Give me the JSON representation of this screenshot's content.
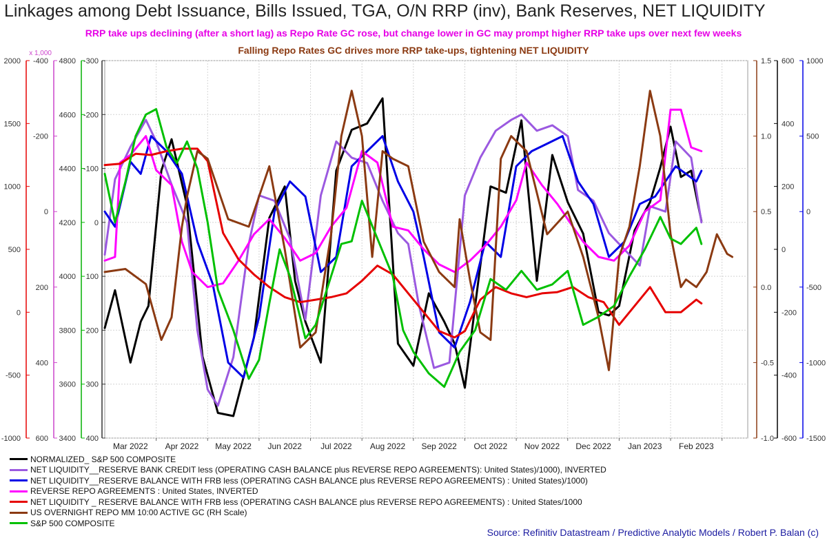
{
  "title": "Linkages among Debt Issuance, Bills Issued, TGA, O/N RRP (inv), Bank Reserves, NET LIQUIDITY",
  "subtitle_1": "RRP take ups declining (after a short lag) as Repo Rate GC rose, but change lower in GC may prompt higher RRP take ups over next few weeks",
  "subtitle_2": "Falling Repo Rates GC drives more RRP take-ups, tightening NET LIQUIDITY",
  "source": "Source: Refinitiv Datastream / Predictive Analytic Models / Robert P. Balan (c)",
  "legend": [
    {
      "label": "NORMALIZED_ S&P 500 COMPOSITE",
      "color": "#000000"
    },
    {
      "label": "NET LIQUIDITY__RESERVE BANK CREDIT less (OPERATING CASH BALANCE plus REVERSE REPO AGREEMENTS): United States)/1000), INVERTED",
      "color": "#9b59e0"
    },
    {
      "label": "NET LIQUIDITY__RESERVE BALANCE WITH FRB less (OPERATING CASH BALANCE plus REVERSE REPO AGREEMENTS) : United States)/1000)",
      "color": "#0000e6"
    },
    {
      "label": "REVERSE REPO AGREEMENTS : United States, INVERTED",
      "color": "#ff00ff"
    },
    {
      "label": "NET LIQUIDITY _ RESERVE BALANCE WITH FRB less (OPERATING CASH BALANCE plus REVERSE REPO AGREEMENTS) : United States/1000",
      "color": "#e60000"
    },
    {
      "label": "US OVERNIGHT REPO MM 10:00 ACTIVE GC (RH Scale)",
      "color": "#8b3a12"
    },
    {
      "label": "S&P 500 COMPOSITE",
      "color": "#00c000"
    }
  ],
  "chart_data": {
    "type": "line",
    "x_ticks": [
      "Mar 2022",
      "Apr 2022",
      "May 2022",
      "Jun 2022",
      "Jul 2022",
      "Aug 2022",
      "Sep 2022",
      "Oct 2022",
      "Nov 2022",
      "Dec 2022",
      "Jan 2023",
      "Feb 2023"
    ],
    "x_range_months": [
      0,
      12.5
    ],
    "axes": [
      {
        "id": "red",
        "side": "left",
        "color": "#e60000",
        "range": [
          -1000,
          2000
        ],
        "ticks": [
          "2000",
          "1500",
          "1000",
          "500",
          "0",
          "-500",
          "-1000"
        ],
        "values": [
          2000,
          1500,
          1000,
          500,
          0,
          -500,
          -1000
        ]
      },
      {
        "id": "magenta",
        "side": "left",
        "color": "#cc44cc",
        "range": [
          -400,
          600
        ],
        "inverted": true,
        "unit_label": "x 1,000",
        "ticks": [
          "-400",
          "-200",
          "0",
          "200",
          "400",
          "600"
        ],
        "values": [
          -400,
          -200,
          0,
          200,
          400,
          600
        ]
      },
      {
        "id": "green",
        "side": "left",
        "color": "#00b000",
        "range": [
          3400,
          4800
        ],
        "ticks": [
          "4800",
          "4600",
          "4400",
          "4200",
          "4000",
          "3800",
          "3600",
          "3400"
        ],
        "values": [
          4800,
          4600,
          4400,
          4200,
          4000,
          3800,
          3600,
          3400
        ]
      },
      {
        "id": "purple",
        "side": "left",
        "color": "#333333",
        "range": [
          -300,
          400
        ],
        "inverted": true,
        "ticks": [
          "-300",
          "-200",
          "-100",
          "0",
          "100",
          "200",
          "300",
          "400"
        ],
        "values": [
          -300,
          -200,
          -100,
          0,
          100,
          200,
          300,
          400
        ]
      },
      {
        "id": "brown",
        "side": "right",
        "color": "#8b3a12",
        "range": [
          -1.0,
          1.5
        ],
        "ticks": [
          "1.5",
          "1.0",
          "0.5",
          "0.0",
          "-0.5",
          "-1.0"
        ],
        "values": [
          1.5,
          1.0,
          0.5,
          0.0,
          -0.5,
          -1.0
        ]
      },
      {
        "id": "black",
        "side": "right",
        "color": "#000000",
        "range": [
          -600,
          600
        ],
        "ticks": [
          "600",
          "400",
          "200",
          "0",
          "-200",
          "-400",
          "-600"
        ],
        "values": [
          600,
          400,
          200,
          0,
          -200,
          -400,
          -600
        ]
      },
      {
        "id": "blue",
        "side": "right",
        "color": "#0000e6",
        "range": [
          -1500,
          1000
        ],
        "ticks": [
          "1000",
          "500",
          "0",
          "-500",
          "-1000",
          "-1500"
        ],
        "values": [
          1000,
          500,
          0,
          -500,
          -1000,
          -1500
        ]
      }
    ],
    "series": [
      {
        "name": "NORMALIZED_ S&P 500 COMPOSITE",
        "color": "#000000",
        "axis": "black",
        "x": [
          0,
          0.2,
          0.5,
          0.7,
          0.85,
          1.1,
          1.3,
          1.6,
          1.9,
          2.2,
          2.5,
          2.9,
          3.2,
          3.5,
          3.7,
          3.9,
          4.2,
          4.5,
          4.8,
          5.1,
          5.4,
          5.7,
          6.0,
          6.3,
          6.6,
          6.8,
          7.0,
          7.2,
          7.5,
          7.8,
          8.1,
          8.4,
          8.7,
          9.0,
          9.3,
          9.6,
          9.8,
          10.0,
          10.3,
          10.6,
          10.8,
          11.0,
          11.2,
          11.4,
          11.6
        ],
        "y": [
          -250,
          -130,
          -360,
          -230,
          -180,
          250,
          350,
          140,
          -340,
          -520,
          -530,
          -280,
          100,
          200,
          -100,
          -230,
          -360,
          250,
          380,
          400,
          480,
          -300,
          -370,
          -140,
          -230,
          -300,
          -440,
          -180,
          200,
          180,
          410,
          -100,
          300,
          150,
          50,
          -200,
          -210,
          -180,
          60,
          150,
          260,
          390,
          230,
          250,
          90
        ]
      },
      {
        "name": "NET LIQUIDITY__RESERVE BANK CREDIT less (OPERATING CASH BALANCE plus REVERSE REPO AGREEMENTS): United States)/1000), INVERTED",
        "color": "#9b59e0",
        "axis": "purple",
        "x": [
          0,
          0.2,
          0.5,
          0.8,
          1.0,
          1.3,
          1.6,
          1.8,
          2.0,
          2.2,
          2.5,
          2.8,
          3.0,
          3.3,
          3.6,
          3.9,
          4.2,
          4.5,
          4.8,
          5.1,
          5.4,
          5.7,
          5.9,
          6.1,
          6.4,
          6.7,
          7.0,
          7.3,
          7.6,
          7.9,
          8.1,
          8.4,
          8.7,
          9.0,
          9.2,
          9.5,
          9.8,
          10.1,
          10.4,
          10.6,
          10.9,
          11.1,
          11.4,
          11.6
        ],
        "y": [
          60,
          -80,
          -140,
          -190,
          -150,
          -70,
          0,
          200,
          310,
          340,
          250,
          40,
          -50,
          -40,
          30,
          180,
          -50,
          -150,
          -120,
          -110,
          -40,
          20,
          40,
          150,
          270,
          260,
          -50,
          -120,
          -170,
          -190,
          -200,
          -170,
          -180,
          -160,
          -60,
          -40,
          20,
          50,
          80,
          -30,
          -20,
          -150,
          -120,
          0
        ]
      },
      {
        "name": "NET LIQUIDITY__RESERVE BALANCE WITH FRB less (OPERATING CASH BALANCE plus REVERSE REPO AGREEMENTS) : United States)/1000)",
        "color": "#0000e6",
        "axis": "blue",
        "x": [
          0,
          0.2,
          0.5,
          0.7,
          0.9,
          1.2,
          1.5,
          1.8,
          2.1,
          2.4,
          2.7,
          3.0,
          3.3,
          3.6,
          3.9,
          4.2,
          4.5,
          4.8,
          5.1,
          5.4,
          5.7,
          6.0,
          6.2,
          6.5,
          6.8,
          7.1,
          7.4,
          7.7,
          8.0,
          8.3,
          8.6,
          8.9,
          9.2,
          9.5,
          9.8,
          10.1,
          10.4,
          10.7,
          10.9,
          11.1,
          11.3,
          11.5,
          11.6
        ],
        "y": [
          0,
          -100,
          330,
          250,
          500,
          400,
          250,
          -200,
          -480,
          -1000,
          -1100,
          -700,
          0,
          200,
          100,
          -400,
          -300,
          300,
          400,
          500,
          200,
          0,
          -300,
          -800,
          -900,
          -600,
          -200,
          -300,
          300,
          400,
          450,
          500,
          200,
          50,
          -300,
          -200,
          50,
          100,
          200,
          300,
          250,
          200,
          270
        ]
      },
      {
        "name": "REVERSE REPO AGREEMENTS : United States, INVERTED",
        "color": "#ff00ff",
        "axis": "magenta",
        "x": [
          0,
          0.2,
          0.3,
          0.5,
          0.8,
          1.0,
          1.3,
          1.5,
          1.7,
          2.0,
          2.3,
          2.6,
          2.9,
          3.2,
          3.5,
          3.8,
          4.1,
          4.4,
          4.7,
          5.0,
          5.3,
          5.6,
          5.9,
          6.2,
          6.5,
          6.8,
          7.1,
          7.4,
          7.7,
          8.0,
          8.2,
          8.5,
          8.8,
          9.0,
          9.3,
          9.6,
          9.9,
          10.2,
          10.5,
          10.8,
          11.0,
          11.2,
          11.4,
          11.6
        ],
        "y": [
          130,
          120,
          -130,
          -150,
          -200,
          -110,
          -70,
          80,
          160,
          200,
          190,
          130,
          60,
          20,
          70,
          130,
          110,
          40,
          -10,
          -160,
          -130,
          40,
          50,
          100,
          140,
          160,
          130,
          90,
          40,
          -30,
          -130,
          -70,
          -20,
          20,
          80,
          120,
          130,
          90,
          0,
          -30,
          -270,
          -270,
          -170,
          -160
        ]
      },
      {
        "name": "NET LIQUIDITY _ RESERVE BALANCE WITH FRB less (OPERATING CASH BALANCE plus REVERSE REPO AGREEMENTS) : United States/1000",
        "color": "#e60000",
        "axis": "red",
        "x": [
          0,
          0.3,
          0.6,
          0.9,
          1.2,
          1.5,
          1.8,
          2.0,
          2.3,
          2.6,
          2.9,
          3.2,
          3.5,
          3.8,
          4.1,
          4.4,
          4.7,
          5.0,
          5.3,
          5.6,
          5.9,
          6.2,
          6.5,
          6.8,
          7.0,
          7.3,
          7.6,
          7.9,
          8.2,
          8.5,
          8.8,
          9.1,
          9.4,
          9.7,
          10.0,
          10.3,
          10.6,
          10.9,
          11.2,
          11.5,
          11.6
        ],
        "y": [
          1170,
          1180,
          1260,
          1250,
          1280,
          1300,
          1300,
          1200,
          630,
          420,
          300,
          200,
          120,
          80,
          100,
          120,
          150,
          250,
          370,
          300,
          150,
          0,
          -150,
          -200,
          -150,
          100,
          200,
          150,
          120,
          150,
          160,
          200,
          120,
          80,
          -100,
          50,
          200,
          0,
          0,
          100,
          70
        ]
      },
      {
        "name": "US OVERNIGHT REPO MM 10:00 ACTIVE GC (RH Scale)",
        "color": "#8b3a12",
        "axis": "brown",
        "x": [
          0,
          0.4,
          0.8,
          1.1,
          1.3,
          1.5,
          1.6,
          1.8,
          2.0,
          2.4,
          2.8,
          3.2,
          3.5,
          3.8,
          4.1,
          4.4,
          4.6,
          4.8,
          5.0,
          5.2,
          5.4,
          5.6,
          5.9,
          6.2,
          6.5,
          6.8,
          6.9,
          7.1,
          7.3,
          7.5,
          7.7,
          7.9,
          8.2,
          8.6,
          9.0,
          9.3,
          9.6,
          9.8,
          10.0,
          10.2,
          10.4,
          10.6,
          10.8,
          11.0,
          11.2,
          11.3,
          11.5,
          11.7,
          11.9,
          12.1,
          12.2
        ],
        "y": [
          0.1,
          0.12,
          0.02,
          -0.35,
          -0.2,
          0.4,
          0.6,
          0.9,
          0.85,
          0.45,
          0.4,
          0.8,
          0.25,
          -0.4,
          -0.3,
          0.35,
          1.0,
          1.3,
          1.0,
          0.2,
          0.9,
          0.85,
          0.8,
          0.3,
          0.1,
          0.0,
          0.45,
          0.05,
          -0.3,
          -0.35,
          0.85,
          1.0,
          0.9,
          0.35,
          0.5,
          0.2,
          -0.2,
          -0.55,
          0.2,
          0.4,
          0.8,
          1.3,
          1.0,
          0.35,
          0.0,
          0.05,
          0.0,
          0.1,
          0.35,
          0.22,
          0.2
        ]
      },
      {
        "name": "S&P 500 COMPOSITE",
        "color": "#00c000",
        "axis": "green",
        "x": [
          0,
          0.2,
          0.4,
          0.6,
          0.8,
          1.0,
          1.2,
          1.4,
          1.6,
          1.8,
          2.0,
          2.2,
          2.5,
          2.8,
          3.0,
          3.2,
          3.4,
          3.6,
          3.9,
          4.1,
          4.4,
          4.6,
          4.8,
          5.0,
          5.3,
          5.6,
          5.8,
          6.0,
          6.3,
          6.6,
          6.9,
          7.2,
          7.5,
          7.8,
          8.1,
          8.4,
          8.7,
          9.0,
          9.3,
          9.6,
          9.9,
          10.2,
          10.5,
          10.8,
          11.0,
          11.2,
          11.3,
          11.5,
          11.6
        ],
        "y": [
          4380,
          4200,
          4350,
          4520,
          4600,
          4620,
          4480,
          4420,
          4500,
          4400,
          4200,
          3950,
          3800,
          3620,
          3690,
          3900,
          4100,
          4000,
          3770,
          3820,
          4000,
          4120,
          4130,
          4280,
          4140,
          4000,
          3800,
          3720,
          3640,
          3590,
          3720,
          3800,
          3990,
          3950,
          4020,
          3950,
          3970,
          4020,
          3820,
          3850,
          3890,
          4000,
          4100,
          4220,
          4140,
          4120,
          4140,
          4180,
          4120
        ]
      }
    ]
  }
}
